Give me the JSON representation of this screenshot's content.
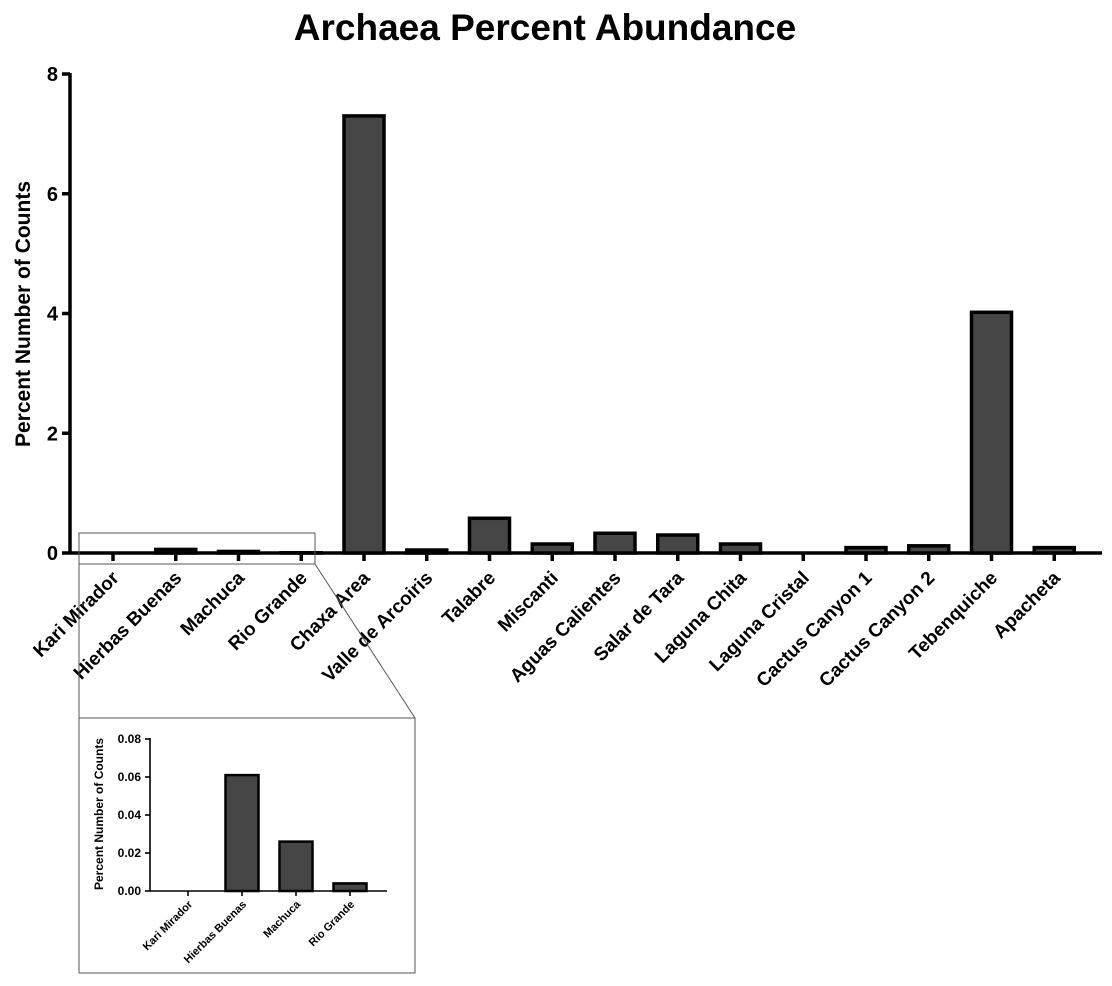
{
  "chart_data": [
    {
      "type": "bar",
      "title": "Archaea Percent Abundance",
      "xlabel": "",
      "ylabel": "Percent Number of Counts",
      "ylim": [
        0,
        8
      ],
      "yticks": [
        "0",
        "2",
        "4",
        "6",
        "8"
      ],
      "categories": [
        "Kari Mirador",
        "Hierbas Buenas",
        "Machuca",
        "Rio Grande",
        "Chaxa Area",
        "Valle de Arcoiris",
        "Talabre",
        "Miscanti",
        "Aguas Calientes",
        "Salar de Tara",
        "Laguna Chita",
        "Laguna Cristal",
        "Cactus Canyon 1",
        "Cactus Canyon 2",
        "Tebenquiche",
        "Apacheta"
      ],
      "values": [
        0.0,
        0.06,
        0.026,
        0.004,
        7.3,
        0.05,
        0.58,
        0.15,
        0.33,
        0.3,
        0.15,
        0.0,
        0.09,
        0.12,
        4.02,
        0.09
      ],
      "grid": false,
      "color": "#464646"
    },
    {
      "type": "bar",
      "title": "",
      "xlabel": "",
      "ylabel": "Percent Number of Counts",
      "ylim": [
        0,
        0.08
      ],
      "yticks": [
        "0.00",
        "0.02",
        "0.04",
        "0.06",
        "0.08"
      ],
      "categories": [
        "Kari Mirador",
        "Hierbas Buenas",
        "Machuca",
        "Rio Grande"
      ],
      "values": [
        0.0,
        0.061,
        0.026,
        0.004
      ],
      "grid": false,
      "color": "#464646"
    }
  ]
}
